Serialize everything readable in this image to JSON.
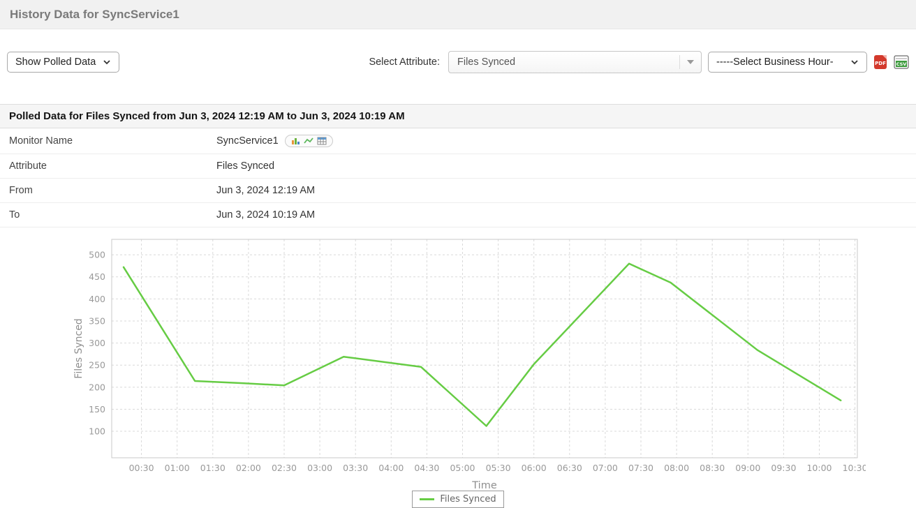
{
  "header": {
    "title": "History Data for SyncService1"
  },
  "toolbar": {
    "polled_select": "Show Polled Data",
    "attribute_label": "Select Attribute:",
    "attribute_value": "Files Synced",
    "business_hour_select": "-----Select Business Hour-",
    "icons": [
      "pdf-export-icon",
      "csv-export-icon"
    ]
  },
  "table": {
    "title": "Polled Data for Files Synced from Jun 3, 2024 12:19 AM to Jun 3, 2024 10:19 AM",
    "rows": [
      {
        "label": "Monitor Name",
        "value": "SyncService1"
      },
      {
        "label": "Attribute",
        "value": "Files Synced"
      },
      {
        "label": "From",
        "value": "Jun 3, 2024 12:19 AM"
      },
      {
        "label": "To",
        "value": "Jun 3, 2024 10:19 AM"
      }
    ],
    "monitor_row_icons": [
      "bar-chart-icon",
      "line-chart-icon",
      "table-icon"
    ]
  },
  "chart_data": {
    "type": "line",
    "title": "",
    "xlabel": "Time",
    "ylabel": "Files Synced",
    "x_ticks": [
      "00:30",
      "01:00",
      "01:30",
      "02:00",
      "02:30",
      "03:00",
      "03:30",
      "04:00",
      "04:30",
      "05:00",
      "05:30",
      "06:00",
      "06:30",
      "07:00",
      "07:30",
      "08:00",
      "08:30",
      "09:00",
      "09:30",
      "10:00",
      "10:30"
    ],
    "y_ticks": [
      100,
      150,
      200,
      250,
      300,
      350,
      400,
      450,
      500
    ],
    "x_range_minutes": [
      5,
      632
    ],
    "y_range": [
      40,
      535
    ],
    "grid": true,
    "legend_position": "bottom-center",
    "series": [
      {
        "name": "Files Synced",
        "points": [
          {
            "t": "00:15",
            "v": 472
          },
          {
            "t": "01:15",
            "v": 214
          },
          {
            "t": "01:55",
            "v": 209
          },
          {
            "t": "02:30",
            "v": 204
          },
          {
            "t": "03:20",
            "v": 269
          },
          {
            "t": "04:25",
            "v": 246
          },
          {
            "t": "05:20",
            "v": 112
          },
          {
            "t": "06:00",
            "v": 252
          },
          {
            "t": "07:20",
            "v": 480
          },
          {
            "t": "07:55",
            "v": 437
          },
          {
            "t": "09:08",
            "v": 284
          },
          {
            "t": "10:18",
            "v": 170
          }
        ]
      }
    ],
    "colors": {
      "line": "#66cc44",
      "grid": "#d9d9d9",
      "border": "#c9c9c9",
      "axis_text": "#999999"
    }
  }
}
